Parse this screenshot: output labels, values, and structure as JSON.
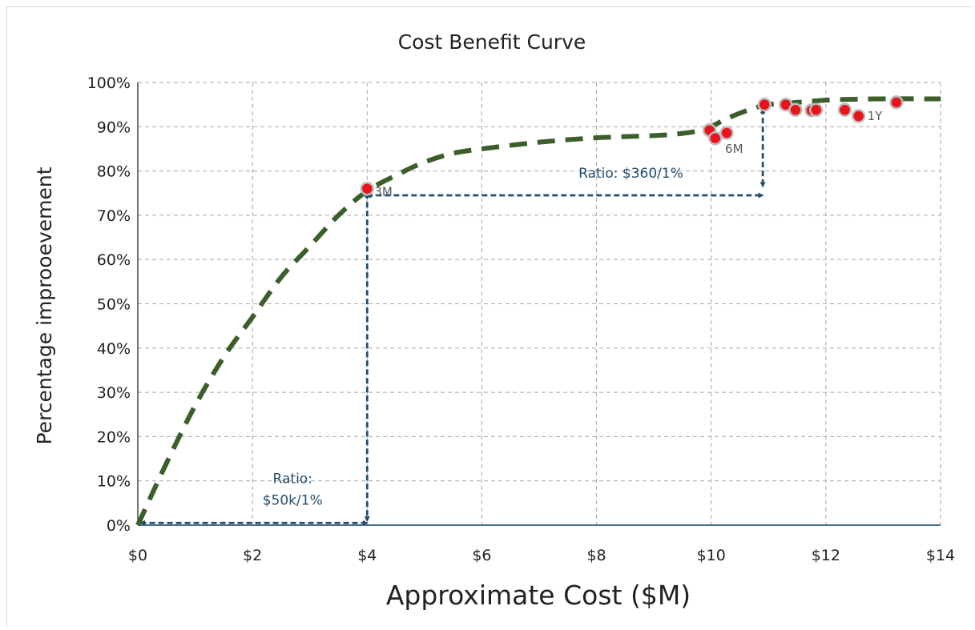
{
  "chart_data": {
    "type": "scatter",
    "title": "Cost Benefit Curve",
    "xlabel": "Approximate Cost ($M)",
    "ylabel": "Percentage improoevement",
    "xlim": [
      0,
      14
    ],
    "ylim": [
      0,
      100
    ],
    "x_ticks": [
      0,
      2,
      4,
      6,
      8,
      10,
      12,
      14
    ],
    "x_tick_labels": [
      "$0",
      "$2",
      "$4",
      "$6",
      "$8",
      "$10",
      "$12",
      "$14"
    ],
    "y_ticks": [
      0,
      10,
      20,
      30,
      40,
      50,
      60,
      70,
      80,
      90,
      100
    ],
    "y_tick_labels": [
      "0%",
      "10%",
      "20%",
      "30%",
      "40%",
      "50%",
      "60%",
      "70%",
      "80%",
      "90%",
      "100%"
    ],
    "grid": true,
    "curve": {
      "style": "dashed",
      "color": "#3b5e2b",
      "points": [
        [
          0,
          0
        ],
        [
          0.5,
          14
        ],
        [
          1,
          27
        ],
        [
          1.5,
          38
        ],
        [
          2,
          47
        ],
        [
          2.5,
          56
        ],
        [
          3,
          63
        ],
        [
          3.5,
          70
        ],
        [
          4,
          75.5
        ],
        [
          4.5,
          79
        ],
        [
          5,
          82
        ],
        [
          5.5,
          84
        ],
        [
          6,
          85
        ],
        [
          7,
          86.5
        ],
        [
          8,
          87.5
        ],
        [
          9,
          88
        ],
        [
          9.5,
          88.5
        ],
        [
          9.9,
          89.5
        ],
        [
          10.3,
          92
        ],
        [
          10.7,
          94
        ],
        [
          11,
          95
        ],
        [
          11.5,
          95.5
        ],
        [
          12,
          96
        ],
        [
          12.5,
          96.2
        ],
        [
          13,
          96.3
        ],
        [
          14,
          96.3
        ]
      ]
    },
    "points": {
      "color": "#e8131b",
      "values": [
        [
          4.0,
          76
        ],
        [
          9.97,
          89.2
        ],
        [
          10.07,
          87.4
        ],
        [
          10.27,
          88.6
        ],
        [
          10.93,
          95
        ],
        [
          11.3,
          95
        ],
        [
          11.47,
          93.8
        ],
        [
          11.75,
          93.7
        ],
        [
          11.83,
          93.8
        ],
        [
          12.33,
          93.8
        ],
        [
          12.57,
          92.4
        ],
        [
          13.23,
          95.5
        ]
      ]
    },
    "point_labels": [
      {
        "text": "3M",
        "x": 4.0,
        "y": 76
      },
      {
        "text": "6M",
        "x": 10.27,
        "y": 88.6
      },
      {
        "text": "1Y",
        "x": 12.57,
        "y": 92.4
      }
    ],
    "annotations": [
      {
        "from": [
          0.05,
          0.5
        ],
        "to": [
          4.0,
          0.5
        ],
        "heads": "both"
      },
      {
        "from": [
          4.0,
          75
        ],
        "to": [
          4.0,
          1.0
        ],
        "heads": "both"
      },
      {
        "from": [
          4.0,
          74.5
        ],
        "to": [
          10.9,
          74.5
        ],
        "heads": "both"
      },
      {
        "from": [
          10.9,
          94
        ],
        "to": [
          10.9,
          76.5
        ],
        "heads": "both"
      }
    ],
    "annotation_color": "#244e70",
    "ratio_labels": [
      {
        "lines": [
          "Ratio:",
          "$50k/1%"
        ],
        "x": 2.7,
        "y": 9.5
      },
      {
        "lines": [
          "Ratio: $360/1%"
        ],
        "x": 8.6,
        "y": 78.5
      }
    ]
  }
}
